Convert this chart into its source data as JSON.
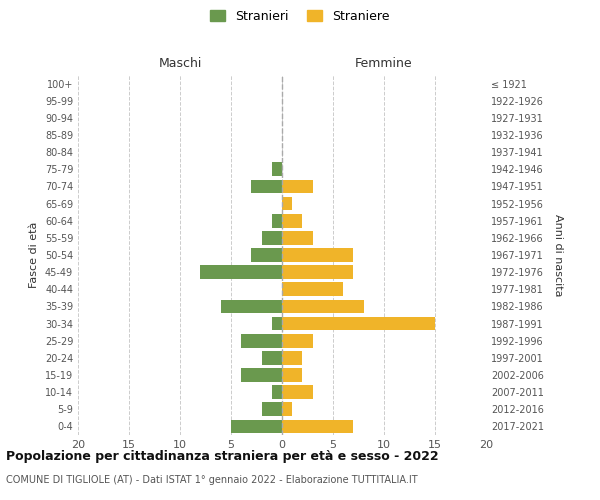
{
  "age_groups": [
    "0-4",
    "5-9",
    "10-14",
    "15-19",
    "20-24",
    "25-29",
    "30-34",
    "35-39",
    "40-44",
    "45-49",
    "50-54",
    "55-59",
    "60-64",
    "65-69",
    "70-74",
    "75-79",
    "80-84",
    "85-89",
    "90-94",
    "95-99",
    "100+"
  ],
  "birth_years": [
    "2017-2021",
    "2012-2016",
    "2007-2011",
    "2002-2006",
    "1997-2001",
    "1992-1996",
    "1987-1991",
    "1982-1986",
    "1977-1981",
    "1972-1976",
    "1967-1971",
    "1962-1966",
    "1957-1961",
    "1952-1956",
    "1947-1951",
    "1942-1946",
    "1937-1941",
    "1932-1936",
    "1927-1931",
    "1922-1926",
    "≤ 1921"
  ],
  "males": [
    5,
    2,
    1,
    4,
    2,
    4,
    1,
    6,
    0,
    8,
    3,
    2,
    1,
    0,
    3,
    1,
    0,
    0,
    0,
    0,
    0
  ],
  "females": [
    7,
    1,
    3,
    2,
    2,
    3,
    15,
    8,
    6,
    7,
    7,
    3,
    2,
    1,
    3,
    0,
    0,
    0,
    0,
    0,
    0
  ],
  "male_color": "#6a994e",
  "female_color": "#f0b429",
  "title": "Popolazione per cittadinanza straniera per età e sesso - 2022",
  "subtitle": "COMUNE DI TIGLIOLE (AT) - Dati ISTAT 1° gennaio 2022 - Elaborazione TUTTITALIA.IT",
  "xlabel_left": "Maschi",
  "xlabel_right": "Femmine",
  "ylabel_left": "Fasce di età",
  "ylabel_right": "Anni di nascita",
  "legend_males": "Stranieri",
  "legend_females": "Straniere",
  "xlim": 20,
  "background_color": "#ffffff",
  "grid_color": "#cccccc",
  "bar_height": 0.8
}
